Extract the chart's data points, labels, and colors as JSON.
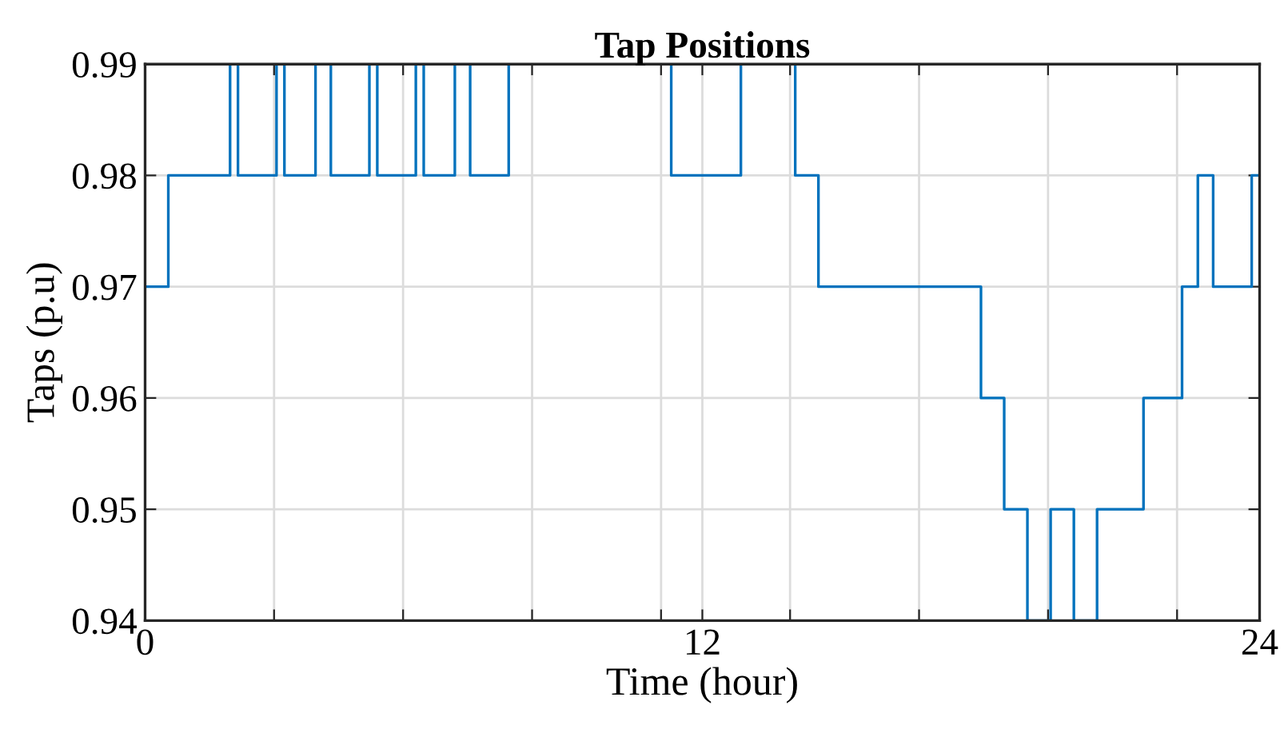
{
  "chart_data": {
    "type": "step",
    "title": "Tap Positions",
    "xlabel": "Time (hour)",
    "ylabel": "Taps (p.u)",
    "x": [
      0,
      0.5,
      1.83,
      2.0,
      2.83,
      3.0,
      3.67,
      4.0,
      4.83,
      5.0,
      5.83,
      6.0,
      6.67,
      7.0,
      7.83,
      11.33,
      12.83,
      14.0,
      14.5,
      18.0,
      18.5,
      19.0,
      19.5,
      20.0,
      20.5,
      21.5,
      22.33,
      22.67,
      23.0,
      23.83,
      24
    ],
    "series": [
      {
        "color": "#0072bd",
        "values": [
          0.97,
          0.98,
          0.99,
          0.98,
          0.99,
          0.98,
          0.99,
          0.98,
          0.99,
          0.98,
          0.99,
          0.98,
          0.99,
          0.98,
          0.99,
          0.98,
          0.99,
          0.98,
          0.97,
          0.96,
          0.95,
          0.94,
          0.95,
          0.94,
          0.95,
          0.96,
          0.97,
          0.98,
          0.97,
          0.98,
          0.98
        ]
      }
    ],
    "xlim": [
      0,
      24
    ],
    "ylim": [
      0.94,
      0.99
    ],
    "xticks": [
      0,
      {
        "value": 2.7778,
        "label": null
      },
      {
        "value": 5.5556,
        "label": null
      },
      {
        "value": 8.3333,
        "label": null
      },
      {
        "value": 11.1111,
        "label": null
      },
      12,
      {
        "value": 13.8889,
        "label": null
      },
      {
        "value": 16.6667,
        "label": null
      },
      {
        "value": 19.4444,
        "label": null
      },
      {
        "value": 22.2222,
        "label": null
      },
      24
    ],
    "yticks": [
      0.94,
      0.95,
      0.96,
      0.97,
      0.98,
      0.99
    ],
    "grid": true,
    "marker": "none",
    "line_style": "solid"
  }
}
